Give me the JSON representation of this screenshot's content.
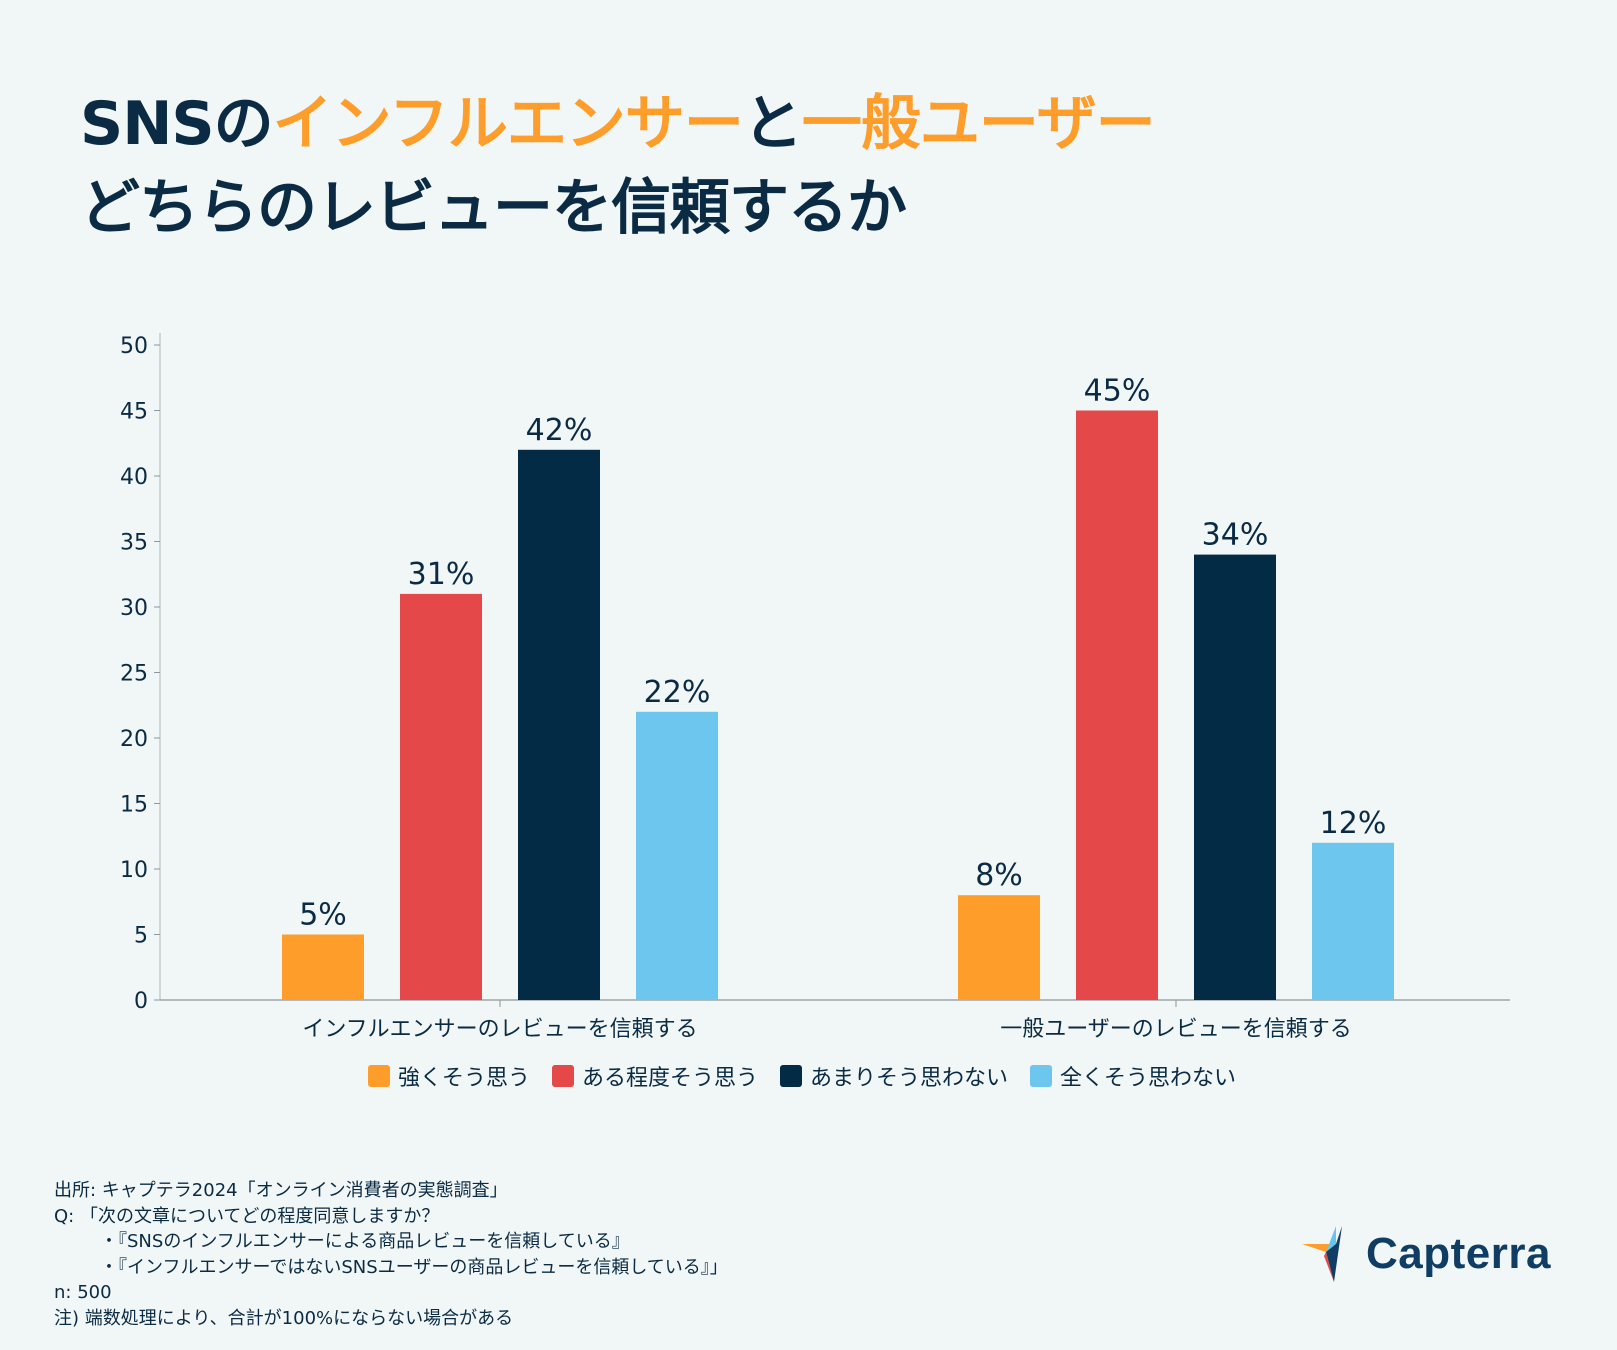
{
  "title": {
    "line1_part1": "SNSの",
    "line1_part2": "インフルエンサー",
    "line1_part3": "と",
    "line1_part4": "一般ユーザー",
    "line2": "どちらのレビューを信頼するか"
  },
  "colors": {
    "navy": "#062b44",
    "orange": "#ff9d2b",
    "red": "#e44848",
    "dark": "#042b45",
    "light_blue": "#6cc6ee"
  },
  "chart_data": {
    "type": "bar",
    "categories": [
      "インフルエンサーのレビューを信頼する",
      "一般ユーザーのレビューを信頼する"
    ],
    "series": [
      {
        "name": "強くそう思う",
        "values": [
          5,
          8
        ],
        "color": "#ff9d2b",
        "labels": [
          "5%",
          "8%"
        ]
      },
      {
        "name": "ある程度そう思う",
        "values": [
          31,
          45
        ],
        "color": "#e44848",
        "labels": [
          "31%",
          "45%"
        ]
      },
      {
        "name": "あまりそう思わない",
        "values": [
          42,
          34
        ],
        "color": "#042b45",
        "labels": [
          "42%",
          "34%"
        ]
      },
      {
        "name": "全くそう思わない",
        "values": [
          22,
          12
        ],
        "color": "#6cc6ee",
        "labels": [
          "22%",
          "12%"
        ]
      }
    ],
    "ylim": [
      0,
      50
    ],
    "yticks": [
      "0",
      "5",
      "10",
      "15",
      "20",
      "25",
      "30",
      "35",
      "40",
      "45",
      "50"
    ],
    "xlabel": "",
    "ylabel": "",
    "legend_position": "bottom"
  },
  "footer": {
    "source": "出所: キャプテラ2024「オンライン消費者の実態調査」",
    "question": "Q: 「次の文章についてどの程度同意しますか？",
    "item1": "・『SNSのインフルエンサーによる商品レビューを信頼している』",
    "item2": "・『インフルエンサーではないSNSユーザーの商品レビューを信頼している』」",
    "n": "n: 500",
    "note": "注) 端数処理により、合計が100%にならない場合がある"
  },
  "logo": {
    "text": "Capterra"
  }
}
